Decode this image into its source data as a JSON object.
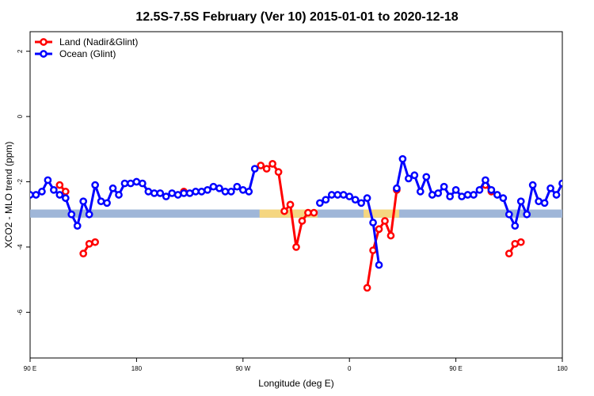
{
  "chart_data": {
    "type": "line",
    "title": "12.5S-7.5S February (Ver 10)   2015-01-01 to 2020-12-18",
    "xlabel": "Longitude (deg E)",
    "ylabel": "XCO2 - MLO trend (ppm)",
    "x_unit": "degrees east, drawn continuously from 90 E eastward across the dateline to 180 (one full circle plus 90 degrees)",
    "xlim": [
      90,
      540
    ],
    "ylim": [
      -7.4,
      2.6
    ],
    "x_ticks": [
      90,
      180,
      270,
      360,
      450,
      540
    ],
    "x_tick_labels": [
      "90 E",
      "180",
      "90 W",
      "0",
      "90 E",
      "180"
    ],
    "y_ticks": [
      -6,
      -4,
      -2,
      0,
      2
    ],
    "y_tick_labels": [
      "-6",
      "-4",
      "-2",
      "0",
      "2"
    ],
    "grid": false,
    "legend": {
      "position": "top-left"
    },
    "series": [
      {
        "name": "Land (Nadir&Glint)",
        "color": "#ff0000",
        "segments": [
          [
            [
              115,
              -2.1
            ],
            [
              120,
              -2.3
            ]
          ],
          [
            [
              135,
              -4.2
            ],
            [
              140,
              -3.9
            ],
            [
              145,
              -3.85
            ]
          ],
          [
            [
              220,
              -2.3
            ]
          ],
          [
            [
              285,
              -1.5
            ],
            [
              290,
              -1.6
            ],
            [
              295,
              -1.45
            ],
            [
              300,
              -1.7
            ],
            [
              305,
              -2.9
            ],
            [
              310,
              -2.7
            ],
            [
              315,
              -4.0
            ],
            [
              320,
              -3.2
            ],
            [
              325,
              -2.95
            ],
            [
              330,
              -2.95
            ]
          ],
          [
            [
              375,
              -5.25
            ],
            [
              380,
              -4.1
            ],
            [
              385,
              -3.45
            ],
            [
              390,
              -3.2
            ],
            [
              395,
              -3.65
            ],
            [
              400,
              -2.25
            ]
          ],
          [
            [
              475,
              -2.1
            ],
            [
              480,
              -2.3
            ]
          ],
          [
            [
              495,
              -4.2
            ],
            [
              500,
              -3.9
            ],
            [
              505,
              -3.85
            ]
          ]
        ]
      },
      {
        "name": "Ocean (Glint)",
        "color": "#0000ff",
        "segments": [
          [
            [
              90,
              -2.4
            ],
            [
              95,
              -2.4
            ],
            [
              100,
              -2.3
            ],
            [
              105,
              -1.95
            ],
            [
              110,
              -2.25
            ],
            [
              115,
              -2.4
            ],
            [
              120,
              -2.5
            ],
            [
              125,
              -3.0
            ],
            [
              130,
              -3.35
            ],
            [
              135,
              -2.6
            ],
            [
              140,
              -3.0
            ],
            [
              145,
              -2.1
            ],
            [
              150,
              -2.6
            ],
            [
              155,
              -2.65
            ],
            [
              160,
              -2.2
            ],
            [
              165,
              -2.4
            ],
            [
              170,
              -2.05
            ],
            [
              175,
              -2.05
            ],
            [
              180,
              -2.0
            ],
            [
              185,
              -2.05
            ],
            [
              190,
              -2.3
            ],
            [
              195,
              -2.35
            ],
            [
              200,
              -2.35
            ],
            [
              205,
              -2.45
            ],
            [
              210,
              -2.35
            ],
            [
              215,
              -2.4
            ],
            [
              220,
              -2.35
            ],
            [
              225,
              -2.35
            ],
            [
              230,
              -2.3
            ],
            [
              235,
              -2.3
            ],
            [
              240,
              -2.25
            ],
            [
              245,
              -2.15
            ],
            [
              250,
              -2.2
            ],
            [
              255,
              -2.3
            ],
            [
              260,
              -2.3
            ],
            [
              265,
              -2.15
            ],
            [
              270,
              -2.25
            ],
            [
              275,
              -2.3
            ],
            [
              280,
              -1.6
            ]
          ],
          [
            [
              335,
              -2.65
            ],
            [
              340,
              -2.55
            ],
            [
              345,
              -2.4
            ],
            [
              350,
              -2.4
            ],
            [
              355,
              -2.4
            ],
            [
              360,
              -2.45
            ],
            [
              365,
              -2.55
            ],
            [
              370,
              -2.65
            ],
            [
              375,
              -2.5
            ],
            [
              380,
              -3.25
            ],
            [
              385,
              -4.55
            ]
          ],
          [
            [
              400,
              -2.2
            ],
            [
              405,
              -1.3
            ],
            [
              410,
              -1.9
            ],
            [
              415,
              -1.8
            ],
            [
              420,
              -2.3
            ],
            [
              425,
              -1.85
            ],
            [
              430,
              -2.4
            ],
            [
              435,
              -2.35
            ],
            [
              440,
              -2.15
            ],
            [
              445,
              -2.45
            ],
            [
              450,
              -2.25
            ],
            [
              455,
              -2.45
            ],
            [
              460,
              -2.4
            ],
            [
              465,
              -2.4
            ],
            [
              470,
              -2.25
            ],
            [
              475,
              -1.95
            ],
            [
              480,
              -2.25
            ],
            [
              485,
              -2.4
            ],
            [
              490,
              -2.5
            ],
            [
              495,
              -3.0
            ],
            [
              500,
              -3.35
            ],
            [
              505,
              -2.6
            ],
            [
              510,
              -3.0
            ],
            [
              515,
              -2.1
            ],
            [
              520,
              -2.6
            ],
            [
              525,
              -2.65
            ],
            [
              530,
              -2.2
            ],
            [
              535,
              -2.4
            ],
            [
              540,
              -2.05
            ],
            [
              545,
              -2.05
            ]
          ]
        ]
      }
    ]
  }
}
